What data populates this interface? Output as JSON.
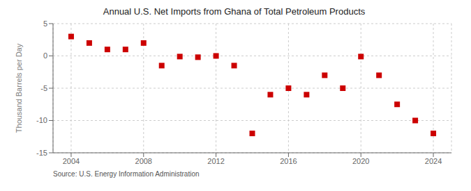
{
  "chart_data": {
    "type": "scatter",
    "title": "Annual U.S. Net Imports from Ghana of Total Petroleum Products",
    "y_label": "Thousand Barrels per Day",
    "annotations": [
      "Source: U.S. Energy Information Administration"
    ],
    "x": [
      2004,
      2005,
      2006,
      2007,
      2008,
      2009,
      2010,
      2011,
      2012,
      2013,
      2014,
      2015,
      2016,
      2017,
      2018,
      2019,
      2020,
      2021,
      2022,
      2023,
      2024
    ],
    "values": [
      3.0,
      2.0,
      1.0,
      1.0,
      2.0,
      -1.5,
      -0.1,
      -0.2,
      0.0,
      -1.5,
      -12.0,
      -6.0,
      -5.0,
      -6.0,
      -3.0,
      -5.0,
      -0.1,
      -3.0,
      -7.5,
      -10.0,
      -12.0
    ],
    "color": "#cc0000",
    "marker": "square",
    "xlim": [
      2003.0,
      2025.0
    ],
    "ylim": [
      -15,
      5
    ],
    "xticks": [
      2004,
      2008,
      2012,
      2016,
      2020,
      2024
    ],
    "yticks": [
      -15,
      -10,
      -5,
      0,
      5
    ],
    "grid": true
  }
}
